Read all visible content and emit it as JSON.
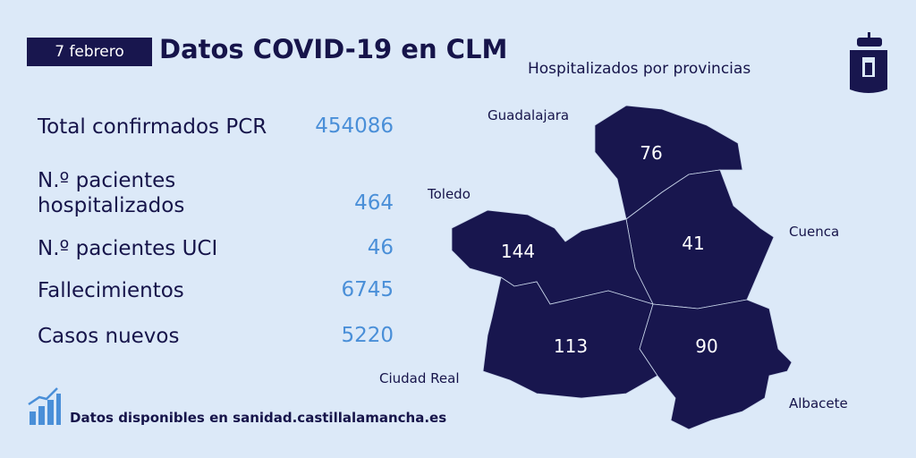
{
  "header": {
    "date": "7 febrero",
    "title": "Datos COVID-19 en CLM"
  },
  "stats": [
    {
      "label": "Total confirmados PCR",
      "value": 454086
    },
    {
      "label": "N.º pacientes hospitalizados",
      "value": 464
    },
    {
      "label": "N.º pacientes UCI",
      "value": 46
    },
    {
      "label": "Fallecimientos",
      "value": 6745
    },
    {
      "label": "Casos nuevos",
      "value": 5220
    }
  ],
  "map": {
    "title": "Hospitalizados por provincias",
    "provinces": [
      {
        "name": "Guadalajara",
        "value": 76
      },
      {
        "name": "Toledo",
        "value": 144
      },
      {
        "name": "Cuenca",
        "value": 41
      },
      {
        "name": "Ciudad Real",
        "value": 113
      },
      {
        "name": "Albacete",
        "value": 90
      }
    ]
  },
  "footer": "Datos disponibles en sanidad.castillalamancha.es"
}
